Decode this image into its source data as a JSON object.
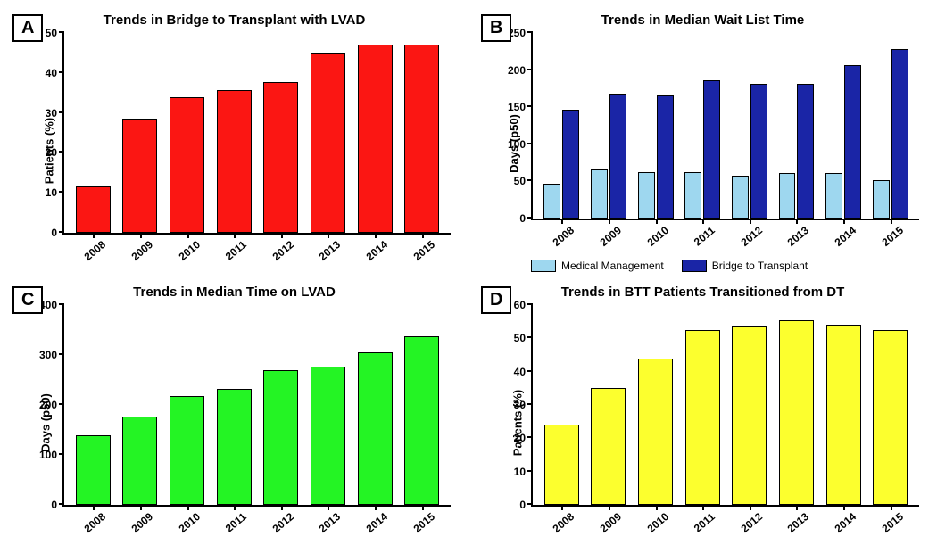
{
  "categories": [
    "2008",
    "2009",
    "2010",
    "2011",
    "2012",
    "2013",
    "2014",
    "2015"
  ],
  "panel_b_extra": {
    "legend": [
      {
        "label": "Medical Management",
        "color": "#9ed7ef"
      },
      {
        "label": "Bridge to Transplant",
        "color": "#1a25a6"
      }
    ]
  },
  "panels": {
    "A": {
      "label": "A",
      "title": "Trends in Bridge to Transplant with LVAD",
      "ylabel": "Patients (%)",
      "type": "bar",
      "ylim": [
        0,
        50
      ],
      "ytick_step": 10,
      "bar_color": "#fb1613",
      "bar_width_pct": 74,
      "values": [
        11.5,
        28.5,
        34,
        35.8,
        37.8,
        45.2,
        47,
        47
      ]
    },
    "B": {
      "label": "B",
      "title": "Trends in Median Wait List Time",
      "ylabel": "Days (p50)",
      "type": "grouped-bar",
      "ylim": [
        0,
        250
      ],
      "ytick_step": 50,
      "bar_width_pct": 36,
      "series": [
        {
          "name": "Medical Management",
          "color": "#9ed7ef",
          "values": [
            47,
            66,
            62,
            62,
            58,
            61,
            61,
            52
          ]
        },
        {
          "name": "Bridge to Transplant",
          "color": "#1a25a6",
          "values": [
            147,
            168,
            166,
            186,
            181,
            181,
            207,
            228
          ]
        }
      ]
    },
    "C": {
      "label": "C",
      "title": "Trends in Median Time on LVAD",
      "ylabel": "Days (p50)",
      "type": "bar",
      "ylim": [
        0,
        400
      ],
      "ytick_step": 100,
      "bar_color": "#24f424",
      "bar_width_pct": 74,
      "values": [
        139,
        177,
        218,
        232,
        270,
        277,
        306,
        337
      ]
    },
    "D": {
      "label": "D",
      "title": "Trends in BTT Patients Transitioned from DT",
      "ylabel": "Patients (%)",
      "type": "bar",
      "ylim": [
        0,
        60
      ],
      "ytick_step": 10,
      "bar_color": "#fcff2e",
      "bar_width_pct": 74,
      "values": [
        24,
        35,
        43.8,
        52.5,
        53.5,
        55.5,
        54,
        52.5
      ]
    }
  },
  "style": {
    "title_fontsize": 15,
    "label_fontsize": 13,
    "tick_fontsize": 12,
    "background_color": "#ffffff",
    "axis_color": "#000000"
  }
}
